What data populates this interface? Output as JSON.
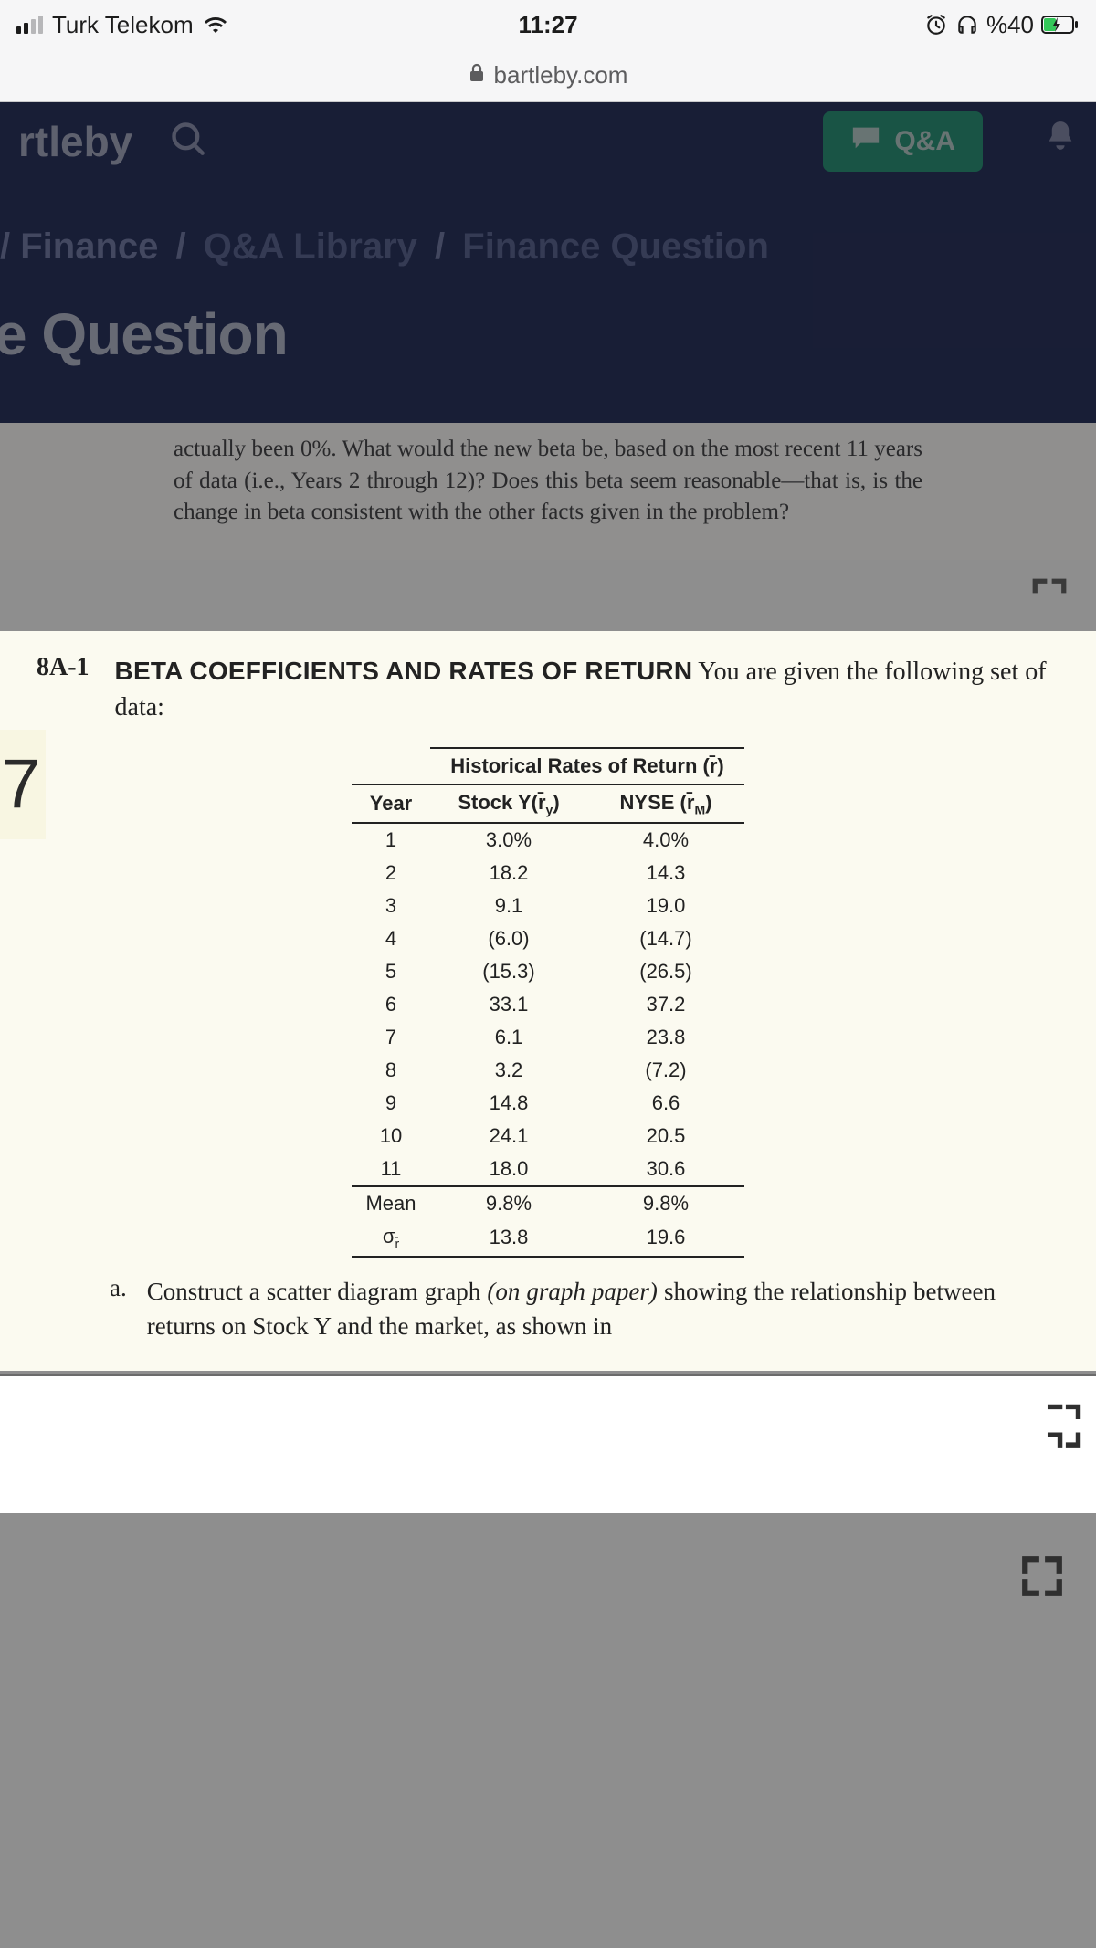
{
  "status": {
    "carrier": "Turk Telekom",
    "time": "11:27",
    "battery": "%40"
  },
  "browser": {
    "domain": "bartleby.com"
  },
  "app": {
    "logo_partial": "rtleby",
    "qa_label": "Q&A"
  },
  "breadcrumb": {
    "a": "Finance",
    "b": "Q&A Library",
    "c": "Finance Question"
  },
  "page_title_partial": "e Question",
  "prev_excerpt": "actually been 0%. What would the new beta be, based on the most recent 11 years of data (i.e., Years 2 through 12)? Does this beta seem reasonable—that is, is the change in beta consistent with the other facts given in the problem?",
  "problem": {
    "number": "8A-1",
    "title_bold": "BETA COEFFICIENTS AND RATES OF RETURN",
    "title_rest": " You are given the following set of data:",
    "side_tab": "7"
  },
  "table": {
    "super_header": "Historical Rates of Return (r̄)",
    "cols": [
      "Year",
      "Stock Y(r̄_y)",
      "NYSE (r̄_M)"
    ],
    "col_year": "Year",
    "col_stock": "Stock Y(r̄",
    "col_stock_sub": "y",
    "col_stock_end": ")",
    "col_nyse": "NYSE (r̄",
    "col_nyse_sub": "M",
    "col_nyse_end": ")",
    "rows": [
      {
        "y": "1",
        "s": "3.0%",
        "n": "4.0%"
      },
      {
        "y": "2",
        "s": "18.2",
        "n": "14.3"
      },
      {
        "y": "3",
        "s": "9.1",
        "n": "19.0"
      },
      {
        "y": "4",
        "s": "(6.0)",
        "n": "(14.7)"
      },
      {
        "y": "5",
        "s": "(15.3)",
        "n": "(26.5)"
      },
      {
        "y": "6",
        "s": "33.1",
        "n": "37.2"
      },
      {
        "y": "7",
        "s": "6.1",
        "n": "23.8"
      },
      {
        "y": "8",
        "s": "3.2",
        "n": "(7.2)"
      },
      {
        "y": "9",
        "s": "14.8",
        "n": "6.6"
      },
      {
        "y": "10",
        "s": "24.1",
        "n": "20.5"
      },
      {
        "y": "11",
        "s": "18.0",
        "n": "30.6"
      }
    ],
    "mean": {
      "y": "Mean",
      "s": "9.8%",
      "n": "9.8%"
    },
    "sigma": {
      "y": "σ_r̄",
      "s": "13.8",
      "n": "19.6"
    },
    "sigma_label_html": "σ",
    "sigma_sub": "r̄"
  },
  "part_a": {
    "label": "a.",
    "text_pre": "Construct a scatter diagram graph ",
    "text_ital": "(on graph paper)",
    "text_post": " showing the relationship between returns on Stock Y and the market, as shown in"
  },
  "styling": {
    "status_bg": "#f6f6f7",
    "app_bg": "#1e2a5a",
    "qa_bg": "#1fa37a",
    "excerpt_bg": "#fbfaf0",
    "prev_bg": "#bdbcb8",
    "grey": "#8e8e8e"
  }
}
